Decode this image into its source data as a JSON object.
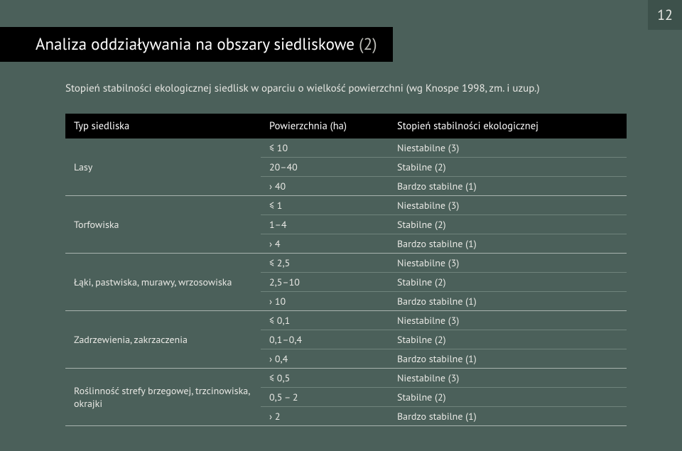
{
  "page_number": "12",
  "title_main": "Analiza oddziaływania na obszary siedliskowe",
  "title_num": "(2)",
  "subtitle": "Stopień stabilności ekologicznej siedlisk w oparciu o wielkość powierzchni (wg Knospe 1998, zm. i uzup.)",
  "columns": {
    "type": "Typ siedliska",
    "area": "Powierzchnia (ha)",
    "stability": "Stopień stabilności ekologicznej"
  },
  "groups": [
    {
      "type": "Lasy",
      "rows": [
        {
          "area": "≤ 10",
          "stab": "Niestabilne (3)"
        },
        {
          "area": "20–40",
          "stab": "Stabilne (2)"
        },
        {
          "area": "› 40",
          "stab": "Bardzo stabilne (1)"
        }
      ]
    },
    {
      "type": "Torfowiska",
      "rows": [
        {
          "area": "≤ 1",
          "stab": "Niestabilne (3)"
        },
        {
          "area": "1–4",
          "stab": "Stabilne (2)"
        },
        {
          "area": "› 4",
          "stab": "Bardzo stabilne (1)"
        }
      ]
    },
    {
      "type": "Łąki, pastwiska, murawy, wrzosowiska",
      "rows": [
        {
          "area": "≤ 2,5",
          "stab": "Niestabilne (3)"
        },
        {
          "area": "2,5–10",
          "stab": "Stabilne (2)"
        },
        {
          "area": "› 10",
          "stab": "Bardzo stabilne (1)"
        }
      ]
    },
    {
      "type": "Zadrzewienia, zakrzaczenia",
      "rows": [
        {
          "area": "≤ 0,1",
          "stab": "Niestabilne (3)"
        },
        {
          "area": "0,1–0,4",
          "stab": "Stabilne (2)"
        },
        {
          "area": "› 0,4",
          "stab": "Bardzo stabilne (1)"
        }
      ]
    },
    {
      "type": "Roślinność strefy brzegowej, trzcinowiska, okrajki",
      "rows": [
        {
          "area": "≤ 0,5",
          "stab": "Niestabilne (3)"
        },
        {
          "area": "0,5 – 2",
          "stab": "Stabilne (2)"
        },
        {
          "area": "› 2",
          "stab": "Bardzo stabilne (1)"
        }
      ]
    }
  ]
}
